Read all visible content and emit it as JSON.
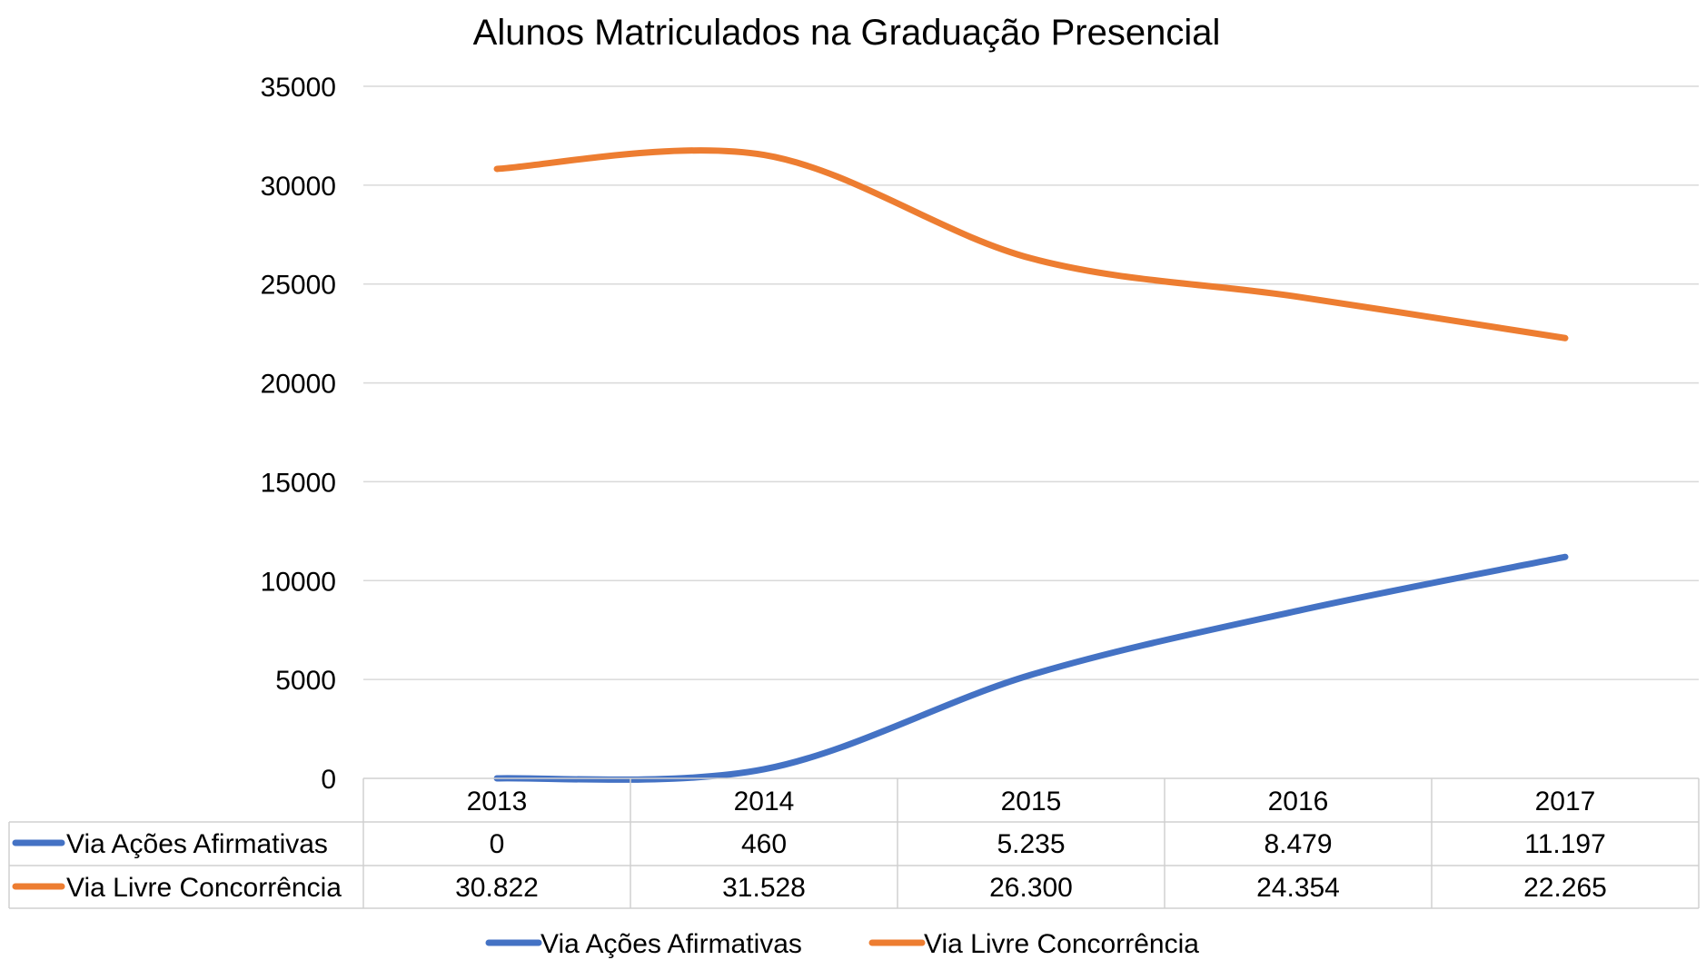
{
  "chart_data": {
    "type": "line",
    "title": "Alunos Matriculados na Graduação Presencial",
    "categories": [
      "2013",
      "2014",
      "2015",
      "2016",
      "2017"
    ],
    "ylim": [
      0,
      35000
    ],
    "yticks": [
      0,
      5000,
      10000,
      15000,
      20000,
      25000,
      30000,
      35000
    ],
    "series": [
      {
        "name": "Via Ações Afirmativas",
        "color": "#4472C4",
        "values": [
          0,
          460,
          5235,
          8479,
          11197
        ],
        "labels": [
          "0",
          "460",
          "5.235",
          "8.479",
          "11.197"
        ]
      },
      {
        "name": "Via Livre Concorrência",
        "color": "#ED7D31",
        "values": [
          30822,
          31528,
          26300,
          24354,
          22265
        ],
        "labels": [
          "30.822",
          "31.528",
          "26.300",
          "24.354",
          "22.265"
        ]
      }
    ],
    "gridlines": true,
    "data_table": true,
    "legend": "bottom"
  }
}
